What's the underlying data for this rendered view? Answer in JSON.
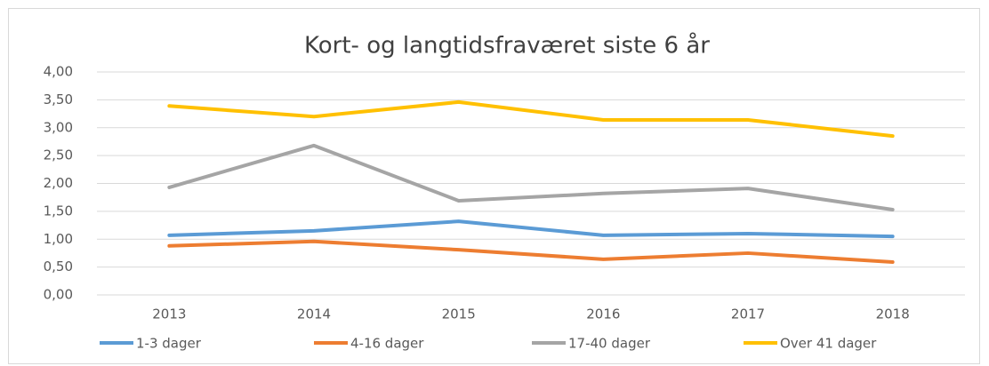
{
  "chart_data": {
    "type": "line",
    "title": "Kort- og langtidsfraværet siste 6 år",
    "categories": [
      "2013",
      "2014",
      "2015",
      "2016",
      "2017",
      "2018"
    ],
    "series": [
      {
        "name": "1-3 dager",
        "color": "#5b9bd5",
        "values": [
          1.07,
          1.15,
          1.32,
          1.07,
          1.1,
          1.05
        ]
      },
      {
        "name": "4-16 dager",
        "color": "#ed7d31",
        "values": [
          0.88,
          0.96,
          0.81,
          0.64,
          0.75,
          0.59
        ]
      },
      {
        "name": "17-40 dager",
        "color": "#a5a5a5",
        "values": [
          1.93,
          2.68,
          1.69,
          1.82,
          1.91,
          1.53
        ]
      },
      {
        "name": "Over 41 dager",
        "color": "#ffc000",
        "values": [
          3.39,
          3.2,
          3.46,
          3.14,
          3.14,
          2.85
        ]
      }
    ],
    "ylim": [
      0,
      4
    ],
    "yticks": [
      {
        "value": 0,
        "label": "0,00"
      },
      {
        "value": 0.5,
        "label": "0,50"
      },
      {
        "value": 1,
        "label": "1,00"
      },
      {
        "value": 1.5,
        "label": "1,50"
      },
      {
        "value": 2,
        "label": "2,00"
      },
      {
        "value": 2.5,
        "label": "2,50"
      },
      {
        "value": 3,
        "label": "3,00"
      },
      {
        "value": 3.5,
        "label": "3,50"
      },
      {
        "value": 4,
        "label": "4,00"
      }
    ],
    "grid": true,
    "legend": "bottom"
  }
}
